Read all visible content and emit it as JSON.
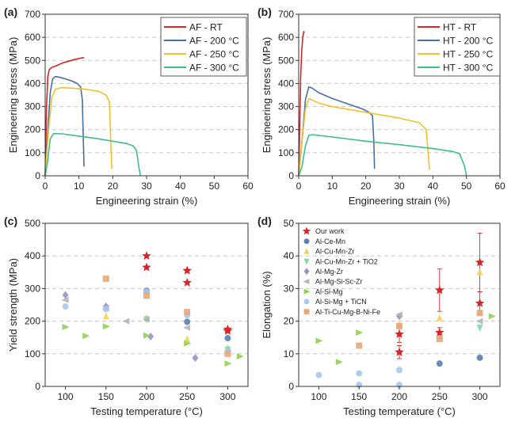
{
  "chart_data": [
    {
      "id": "a",
      "panel_label": "(a)",
      "type": "line",
      "xlabel": "Engineering strain (%)",
      "ylabel": "Engineering stress (MPa)",
      "xlim": [
        0,
        60
      ],
      "ylim": [
        0,
        700
      ],
      "xticks": [
        0,
        10,
        20,
        30,
        40,
        50,
        60
      ],
      "yticks": [
        0,
        100,
        200,
        300,
        400,
        500,
        600,
        700
      ],
      "grid": "horizontal dashed",
      "legend": "top-right",
      "series": [
        {
          "name": "AF - RT",
          "color": "#d62728",
          "x": [
            0,
            0.4,
            0.8,
            1.2,
            2,
            3,
            5,
            7,
            9,
            10.5,
            11.5
          ],
          "y": [
            0,
            300,
            430,
            460,
            470,
            475,
            488,
            497,
            505,
            510,
            512
          ]
        },
        {
          "name": "AF - 200 °C",
          "color": "#4a6fa5",
          "x": [
            0,
            0.8,
            1.5,
            2.2,
            3,
            4,
            6,
            8,
            9.5,
            10.5,
            11,
            11.3,
            11.5
          ],
          "y": [
            0,
            200,
            360,
            420,
            430,
            428,
            420,
            410,
            400,
            385,
            330,
            150,
            40
          ]
        },
        {
          "name": "AF - 250 °C",
          "color": "#f2c12e",
          "x": [
            0,
            1,
            2,
            3,
            5,
            8,
            12,
            16,
            18,
            19,
            19.4,
            19.7
          ],
          "y": [
            0,
            200,
            340,
            375,
            382,
            380,
            375,
            365,
            350,
            320,
            150,
            30
          ]
        },
        {
          "name": "AF - 300 °C",
          "color": "#3dbf8a",
          "x": [
            0,
            0.7,
            1.5,
            2.5,
            5,
            10,
            15,
            20,
            24,
            26,
            27,
            27.8,
            28.2
          ],
          "y": [
            0,
            60,
            160,
            183,
            182,
            172,
            162,
            150,
            140,
            130,
            110,
            30,
            0
          ]
        }
      ]
    },
    {
      "id": "b",
      "panel_label": "(b)",
      "type": "line",
      "xlabel": "Engineering strain (%)",
      "ylabel": "Engineering stress (MPa)",
      "xlim": [
        0,
        60
      ],
      "ylim": [
        0,
        700
      ],
      "xticks": [
        0,
        10,
        20,
        30,
        40,
        50,
        60
      ],
      "yticks": [
        0,
        100,
        200,
        300,
        400,
        500,
        600,
        700
      ],
      "grid": "horizontal dashed",
      "legend": "top-right",
      "series": [
        {
          "name": "HT - RT",
          "color": "#d62728",
          "x": [
            0,
            0.3,
            0.6,
            0.9,
            1.2,
            1.5,
            1.7
          ],
          "y": [
            0,
            220,
            430,
            540,
            600,
            625,
            620
          ]
        },
        {
          "name": "HT - 200 °C",
          "color": "#4a6fa5",
          "x": [
            0,
            1,
            2,
            3,
            4,
            6,
            10,
            15,
            19,
            21,
            22,
            22.4,
            22.6
          ],
          "y": [
            0,
            150,
            330,
            385,
            380,
            360,
            335,
            310,
            290,
            275,
            260,
            150,
            30
          ]
        },
        {
          "name": "HT - 250 °C",
          "color": "#f2c12e",
          "x": [
            0,
            1,
            2,
            3,
            6,
            10,
            20,
            30,
            36,
            38,
            38.6,
            39
          ],
          "y": [
            0,
            150,
            290,
            335,
            315,
            300,
            275,
            250,
            230,
            200,
            100,
            25
          ]
        },
        {
          "name": "HT - 300 °C",
          "color": "#3dbf8a",
          "x": [
            0,
            1,
            2,
            3,
            4,
            10,
            20,
            30,
            40,
            46,
            48,
            49.5,
            50
          ],
          "y": [
            0,
            40,
            130,
            175,
            178,
            168,
            150,
            135,
            118,
            105,
            95,
            40,
            0
          ]
        }
      ]
    },
    {
      "id": "c",
      "panel_label": "(c)",
      "type": "scatter",
      "xlabel": "Testing temperature (°C)",
      "ylabel": "Yield strength (MPa)",
      "xlim": [
        75,
        325
      ],
      "ylim": [
        0,
        500
      ],
      "xticks": [
        100,
        150,
        200,
        250,
        300
      ],
      "yticks": [
        0,
        100,
        200,
        300,
        400,
        500
      ],
      "grid": "horizontal dashed",
      "series": [
        {
          "name": "Our work",
          "marker": "star",
          "color": "#d62728",
          "x": [
            200,
            200,
            250,
            250,
            300,
            300
          ],
          "y": [
            400,
            365,
            355,
            318,
            175,
            170
          ]
        },
        {
          "name": "Al-Ce-Mn",
          "marker": "circle",
          "color": "#5b7db1",
          "x": [
            200,
            250,
            300
          ],
          "y": [
            293,
            198,
            148
          ]
        },
        {
          "name": "Al-Cu-Mn-Zr",
          "marker": "triangle-up",
          "color": "#f2d35a",
          "x": [
            150,
            200,
            250,
            300
          ],
          "y": [
            215,
            210,
            145,
            118
          ]
        },
        {
          "name": "Al-Cu-Mn-Zr + TiO2",
          "marker": "triangle-down",
          "color": "#7fd6a8",
          "x": [
            200,
            300
          ],
          "y": [
            205,
            112
          ]
        },
        {
          "name": "Al-Mg-Zr",
          "marker": "diamond",
          "color": "#9b8fc4",
          "x": [
            100,
            150,
            205,
            260
          ],
          "y": [
            280,
            245,
            153,
            87
          ]
        },
        {
          "name": "Al-Mg-Si-Sc-Zr",
          "marker": "triangle-left",
          "color": "#b5b5b5",
          "x": [
            100,
            150,
            175,
            200,
            250,
            300
          ],
          "y": [
            265,
            240,
            200,
            205,
            180,
            105
          ]
        },
        {
          "name": "Al-Si-Mg",
          "marker": "triangle-right",
          "color": "#8fd14f",
          "x": [
            100,
            125,
            150,
            200,
            250,
            300,
            315
          ],
          "y": [
            182,
            155,
            184,
            156,
            132,
            70,
            92
          ]
        },
        {
          "name": "Al-Si-Mg + TiCN",
          "marker": "circle",
          "color": "#a9c8ec",
          "x": [
            100,
            150,
            200,
            250,
            300
          ],
          "y": [
            245,
            237,
            290,
            218,
            108
          ]
        },
        {
          "name": "Al-Ti-Cu-Mg-B-Ni-Fe",
          "marker": "square",
          "color": "#e8a87c",
          "x": [
            150,
            200,
            250,
            300
          ],
          "y": [
            330,
            278,
            228,
            100
          ]
        }
      ]
    },
    {
      "id": "d",
      "panel_label": "(d)",
      "type": "scatter",
      "xlabel": "Testing temperature (°C)",
      "ylabel": "Elongation (%)",
      "xlim": [
        75,
        325
      ],
      "ylim": [
        0,
        50
      ],
      "xticks": [
        100,
        150,
        200,
        250,
        300
      ],
      "yticks": [
        0,
        10,
        20,
        30,
        40,
        50
      ],
      "grid": "horizontal dashed",
      "legend": "top-left",
      "series": [
        {
          "name": "Our work",
          "marker": "star",
          "color": "#d62728",
          "x": [
            200,
            200,
            250,
            250,
            300,
            300
          ],
          "y": [
            10.5,
            16,
            16.5,
            29.5,
            25.5,
            38
          ],
          "err": [
            2,
            2.5,
            1.5,
            6.5,
            3.5,
            9
          ]
        },
        {
          "name": "Al-Ce-Mn",
          "marker": "circle",
          "color": "#5b7db1",
          "x": [
            250,
            300
          ],
          "y": [
            7,
            8.8
          ]
        },
        {
          "name": "Al-Cu-Mn-Zr",
          "marker": "triangle-up",
          "color": "#f2d35a",
          "x": [
            200,
            250,
            300
          ],
          "y": [
            19,
            21,
            35
          ]
        },
        {
          "name": "Al-Cu-Mn-Zr + TiO2",
          "marker": "triangle-down",
          "color": "#7fd6a8",
          "x": [
            300
          ],
          "y": [
            18
          ]
        },
        {
          "name": "Al-Mg-Zr",
          "marker": "diamond",
          "color": "#9b8fc4",
          "x": [
            200
          ],
          "y": [
            21.5
          ]
        },
        {
          "name": "Al-Mg-Si-Sc-Zr",
          "marker": "triangle-left",
          "color": "#b5b5b5",
          "x": [
            200,
            250,
            300
          ],
          "y": [
            22,
            15,
            20
          ]
        },
        {
          "name": "Al-Si-Mg",
          "marker": "triangle-right",
          "color": "#8fd14f",
          "x": [
            100,
            125,
            150,
            315
          ],
          "y": [
            14,
            7.5,
            16.5,
            21.5
          ]
        },
        {
          "name": "Al-Si-Mg + TiCN",
          "marker": "circle",
          "color": "#a9c8ec",
          "x": [
            100,
            150,
            200,
            200,
            150
          ],
          "y": [
            3.5,
            4,
            5,
            0.5,
            0.5
          ]
        },
        {
          "name": "Al-Ti-Cu-Mg-B-Ni-Fe",
          "marker": "square",
          "color": "#e8a87c",
          "x": [
            150,
            200,
            250,
            300
          ],
          "y": [
            12.5,
            18.5,
            14.5,
            22.5
          ]
        }
      ]
    }
  ]
}
